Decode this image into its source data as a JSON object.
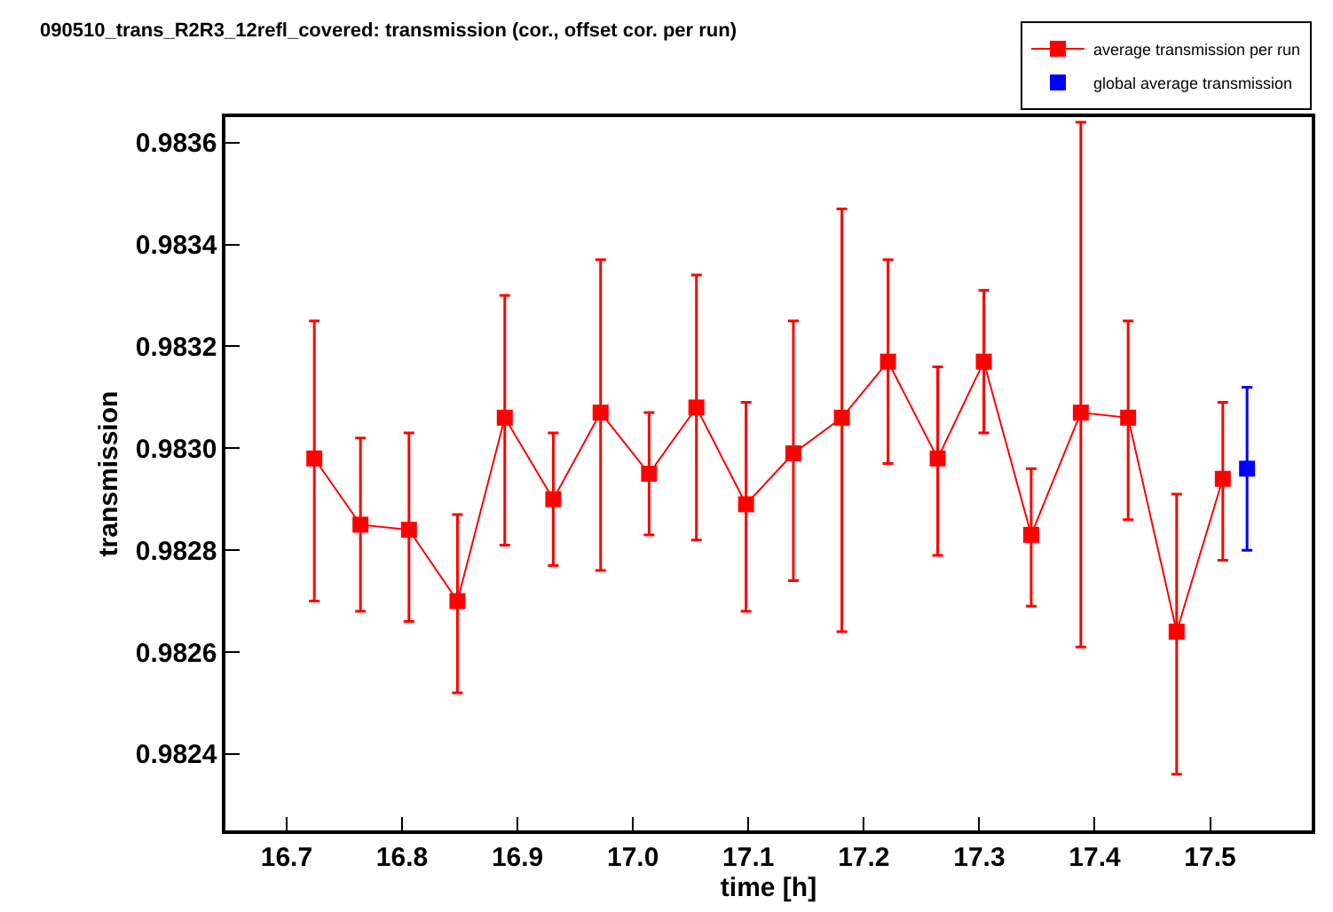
{
  "chart_data": {
    "type": "line",
    "title": "090510_trans_R2R3_12refl_covered: transmission (cor., offset cor. per run)",
    "xlabel": "time [h]",
    "ylabel": "transmission",
    "xlim": [
      16.647,
      17.588
    ],
    "ylim": [
      0.98225,
      0.98365
    ],
    "xticks": [
      16.7,
      16.8,
      16.9,
      {
        "value": 17,
        "label": "17.0"
      },
      17.1,
      17.2,
      17.3,
      17.4,
      17.5
    ],
    "yticks": [
      0.9824,
      0.9826,
      0.9828,
      {
        "value": 0.983,
        "label": "0.9830"
      },
      0.9832,
      0.9834,
      0.9836
    ],
    "grid": false,
    "legend": "top right",
    "marker": "square",
    "series": [
      {
        "name": "average transmission per run",
        "type": "line",
        "color": "#ff0000",
        "x": [
          16.724,
          16.764,
          16.806,
          16.848,
          16.889,
          16.931,
          16.972,
          17.014,
          17.055,
          17.098,
          17.139,
          17.181,
          17.221,
          17.264,
          17.304,
          17.345,
          17.388,
          17.429,
          17.471,
          17.511
        ],
        "values": [
          0.98298,
          0.98285,
          0.98284,
          0.9827,
          0.98306,
          0.9829,
          0.98307,
          0.98295,
          0.98308,
          0.98289,
          0.98299,
          0.98306,
          0.98317,
          0.98298,
          0.98317,
          0.98283,
          0.98307,
          0.98306,
          0.98264,
          0.98294
        ],
        "errors": [
          [
            0.9827,
            0.98325
          ],
          [
            0.98268,
            0.98302
          ],
          [
            0.98266,
            0.98303
          ],
          [
            0.98252,
            0.98287
          ],
          [
            0.98281,
            0.9833
          ],
          [
            0.98277,
            0.98303
          ],
          [
            0.98276,
            0.98337
          ],
          [
            0.98283,
            0.98307
          ],
          [
            0.98282,
            0.98334
          ],
          [
            0.98268,
            0.98309
          ],
          [
            0.98274,
            0.98325
          ],
          [
            0.98264,
            0.98347
          ],
          [
            0.98297,
            0.98337
          ],
          [
            0.98279,
            0.98316
          ],
          [
            0.98303,
            0.98331
          ],
          [
            0.98269,
            0.98296
          ],
          [
            0.98261,
            0.98364
          ],
          [
            0.98286,
            0.98325
          ],
          [
            0.98236,
            0.98291
          ],
          [
            0.98278,
            0.98309
          ]
        ]
      },
      {
        "name": "global average transmission",
        "type": "scatter",
        "color": "#0000ff",
        "x": [
          17.532
        ],
        "values": [
          0.98296
        ],
        "errors": [
          [
            0.9828,
            0.98312
          ]
        ]
      }
    ]
  }
}
